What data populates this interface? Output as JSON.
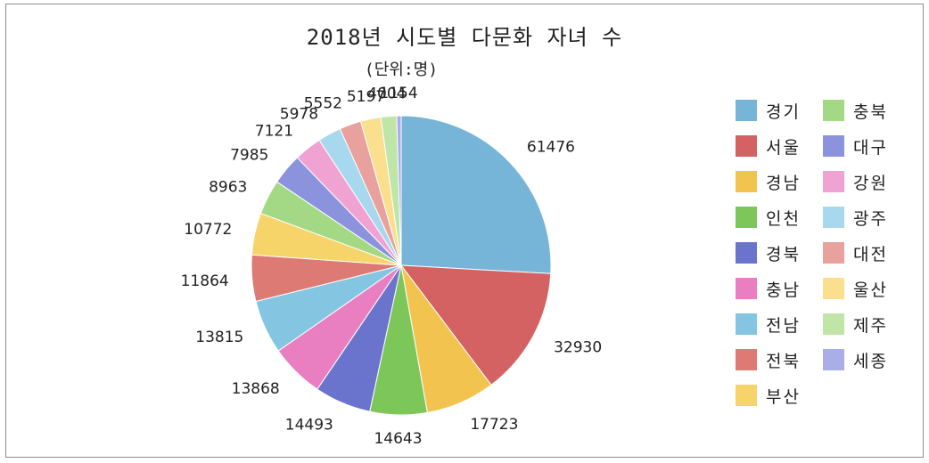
{
  "chart_data": {
    "type": "pie",
    "title": "2018년 시도별 다문화 자녀 수",
    "subtitle": "(단위:명)",
    "legend_position": "right",
    "slices": [
      {
        "label": "경기",
        "value": 61476,
        "color": "#76b5d8"
      },
      {
        "label": "서울",
        "value": 32930,
        "color": "#d46262"
      },
      {
        "label": "경남",
        "value": 17723,
        "color": "#f2c44f"
      },
      {
        "label": "인천",
        "value": 14643,
        "color": "#7dc65a"
      },
      {
        "label": "경북",
        "value": 14493,
        "color": "#6a74cc"
      },
      {
        "label": "충남",
        "value": 13868,
        "color": "#e97fc0"
      },
      {
        "label": "전남",
        "value": 13815,
        "color": "#84c6e2"
      },
      {
        "label": "전북",
        "value": 11864,
        "color": "#de7a74"
      },
      {
        "label": "부산",
        "value": 10772,
        "color": "#f7d469"
      },
      {
        "label": "충북",
        "value": 8963,
        "color": "#a3d885"
      },
      {
        "label": "대구",
        "value": 7985,
        "color": "#8b93dc"
      },
      {
        "label": "강원",
        "value": 7121,
        "color": "#f0a3d2"
      },
      {
        "label": "광주",
        "value": 5978,
        "color": "#a8d8ee"
      },
      {
        "label": "대전",
        "value": 5552,
        "color": "#e8a19c"
      },
      {
        "label": "울산",
        "value": 5197,
        "color": "#fadf8f"
      },
      {
        "label": "제주",
        "value": 4004,
        "color": "#bfe5a7"
      },
      {
        "label": "세종",
        "value": 1154,
        "color": "#aaaee8"
      }
    ]
  }
}
